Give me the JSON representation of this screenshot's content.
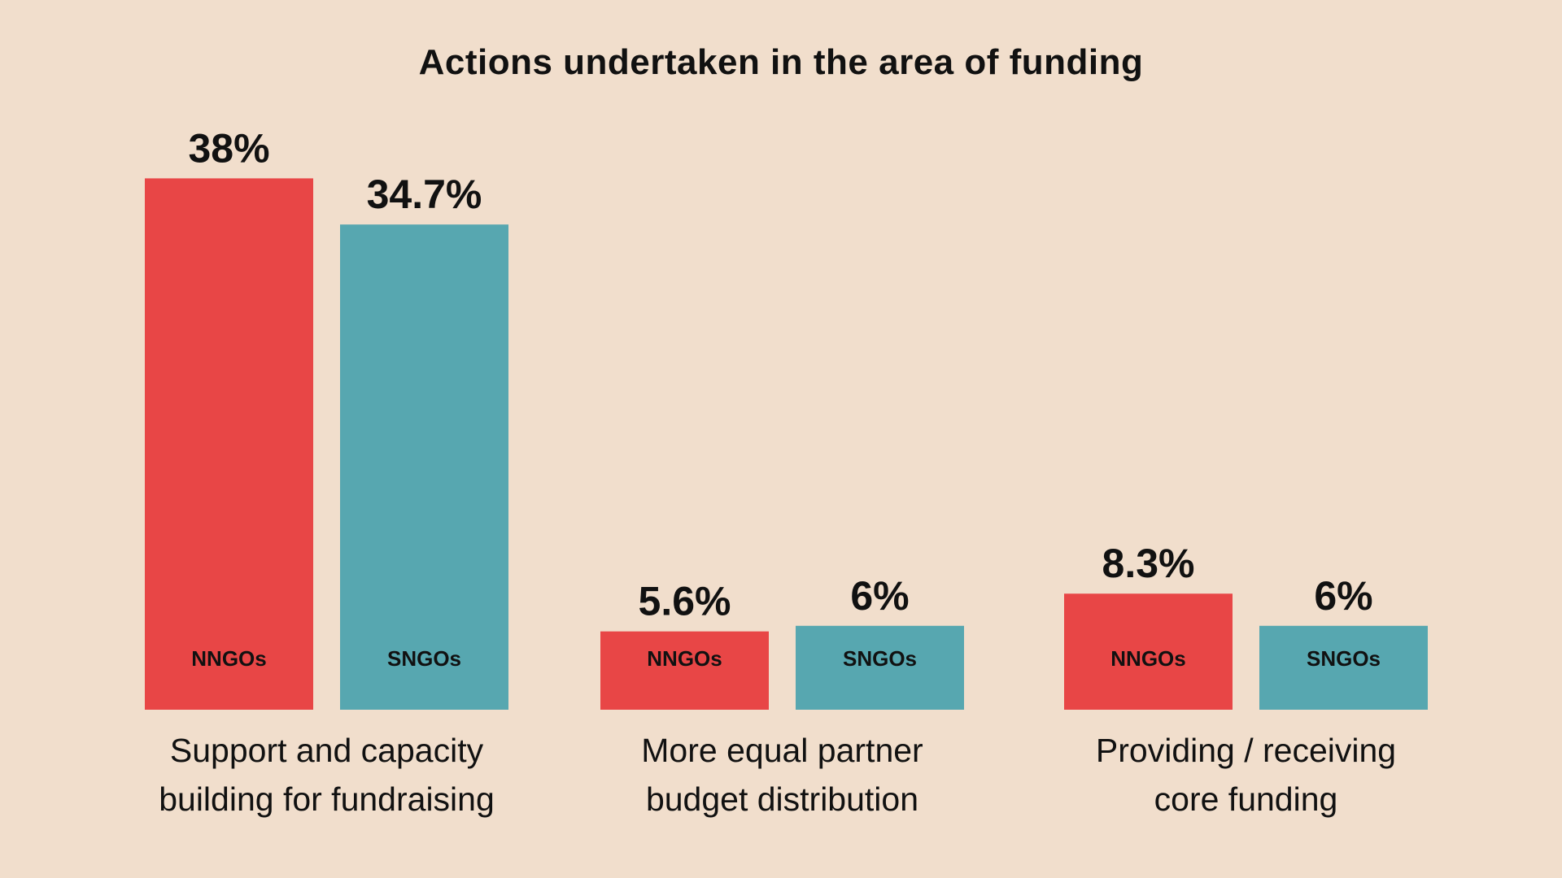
{
  "title": "Actions undertaken in the area of funding",
  "colors": {
    "NNGOs": "#e84646",
    "SNGOs": "#57a7b0",
    "background": "#f1decc",
    "text": "#111111"
  },
  "chart_data": {
    "type": "bar",
    "title": "Actions undertaken in the area of funding",
    "xlabel": "",
    "ylabel": "",
    "ylim": [
      0,
      40
    ],
    "grid": false,
    "categories": [
      "Support and capacity\nbuilding for fundraising",
      "More equal partner\nbudget distribution",
      "Providing / receiving\ncore funding"
    ],
    "series": [
      {
        "name": "NNGOs",
        "values": [
          38,
          5.6,
          8.3
        ],
        "labels": [
          "38%",
          "5.6%",
          "8.3%"
        ]
      },
      {
        "name": "SNGOs",
        "values": [
          34.7,
          6,
          6
        ],
        "labels": [
          "34.7%",
          "6%",
          "6%"
        ]
      }
    ]
  }
}
